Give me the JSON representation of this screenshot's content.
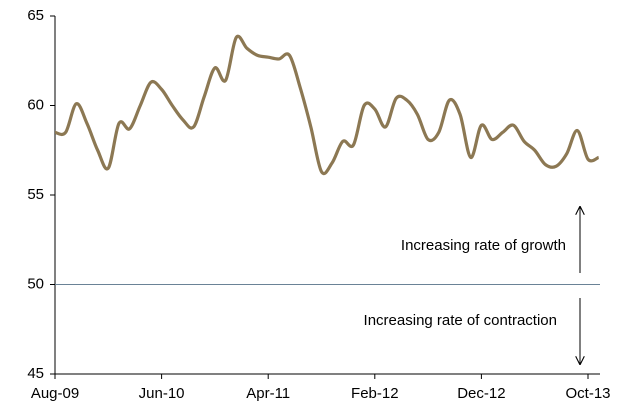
{
  "chart_data": {
    "type": "line",
    "categories": [
      "Aug-09",
      null,
      null,
      null,
      null,
      null,
      null,
      null,
      null,
      null,
      "Jun-10",
      null,
      null,
      null,
      null,
      null,
      null,
      null,
      null,
      null,
      "Apr-11",
      null,
      null,
      null,
      null,
      null,
      null,
      null,
      null,
      null,
      "Feb-12",
      null,
      null,
      null,
      null,
      null,
      null,
      null,
      null,
      null,
      "Dec-12",
      null,
      null,
      null,
      null,
      null,
      null,
      null,
      null,
      null,
      "Oct-13",
      null
    ],
    "values": [
      58.5,
      58.5,
      60.1,
      59.0,
      57.5,
      56.5,
      59.0,
      58.7,
      60.0,
      61.3,
      60.9,
      60.0,
      59.2,
      58.8,
      60.5,
      62.1,
      61.4,
      63.8,
      63.2,
      62.8,
      62.7,
      62.6,
      62.8,
      61.0,
      58.8,
      56.3,
      56.8,
      58.0,
      57.8,
      60.0,
      59.8,
      58.8,
      60.4,
      60.3,
      59.5,
      58.1,
      58.5,
      60.3,
      59.5,
      57.1,
      58.9,
      58.1,
      58.5,
      58.9,
      58.0,
      57.5,
      56.7,
      56.6,
      57.3,
      58.6,
      57.0,
      57.1
    ],
    "color": "#8c7853",
    "ylim": [
      45,
      65
    ],
    "yticks": [
      45,
      50,
      55,
      60,
      65
    ],
    "hline": 50,
    "annotations": [
      "Increasing rate of growth",
      "Increasing rate of contraction"
    ]
  }
}
